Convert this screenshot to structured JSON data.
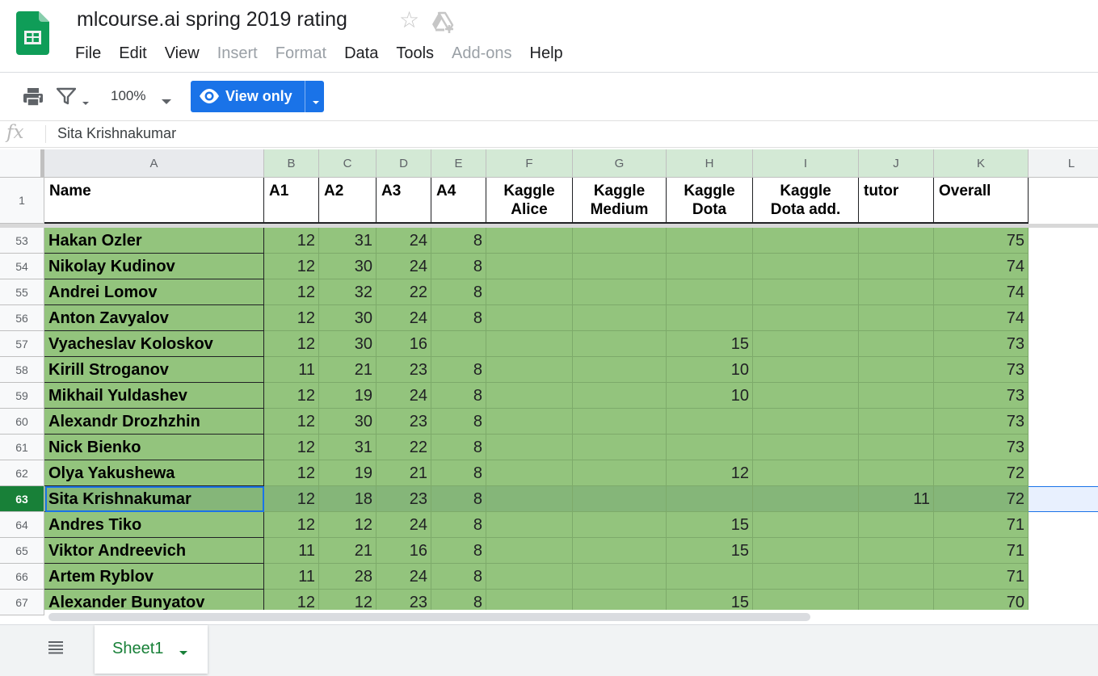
{
  "app": {
    "doc_title": "mlcourse.ai spring 2019 rating",
    "icons": {
      "logo": "sheets-logo-icon",
      "star": "star-icon",
      "drive": "add-to-drive-icon"
    }
  },
  "menu": [
    "File",
    "Edit",
    "View",
    "Insert",
    "Format",
    "Data",
    "Tools",
    "Add-ons",
    "Help"
  ],
  "menu_disabled": [
    "Insert",
    "Format",
    "Add-ons"
  ],
  "toolbar": {
    "zoom": "100%",
    "view_only_label": "View only",
    "icons": {
      "print": "print-icon",
      "filter": "filter-icon",
      "eye": "eye-icon"
    }
  },
  "formula_bar": {
    "fx_label": "fx",
    "content": "Sita Krishnakumar"
  },
  "columns": [
    "A",
    "B",
    "C",
    "D",
    "E",
    "F",
    "G",
    "H",
    "I",
    "J",
    "K",
    "L"
  ],
  "header_row": {
    "row_number": "1",
    "cells": [
      [
        "Name"
      ],
      [
        "A1"
      ],
      [
        "A2"
      ],
      [
        "A3"
      ],
      [
        "A4"
      ],
      [
        "Kaggle",
        "Alice"
      ],
      [
        "Kaggle",
        "Medium"
      ],
      [
        "Kaggle",
        "Dota"
      ],
      [
        "Kaggle",
        "Dota add."
      ],
      [
        "tutor"
      ],
      [
        "Overall"
      ]
    ]
  },
  "rows": [
    {
      "n": "53",
      "cells": [
        "Hakan Ozler",
        "12",
        "31",
        "24",
        "8",
        "",
        "",
        "",
        "",
        "",
        "75"
      ]
    },
    {
      "n": "54",
      "cells": [
        "Nikolay Kudinov",
        "12",
        "30",
        "24",
        "8",
        "",
        "",
        "",
        "",
        "",
        "74"
      ]
    },
    {
      "n": "55",
      "cells": [
        "Andrei Lomov",
        "12",
        "32",
        "22",
        "8",
        "",
        "",
        "",
        "",
        "",
        "74"
      ]
    },
    {
      "n": "56",
      "cells": [
        "Anton Zavyalov",
        "12",
        "30",
        "24",
        "8",
        "",
        "",
        "",
        "",
        "",
        "74"
      ]
    },
    {
      "n": "57",
      "cells": [
        "Vyacheslav Koloskov",
        "12",
        "30",
        "16",
        "",
        "",
        "",
        "15",
        "",
        "",
        "73"
      ]
    },
    {
      "n": "58",
      "cells": [
        "Kirill Stroganov",
        "11",
        "21",
        "23",
        "8",
        "",
        "",
        "10",
        "",
        "",
        "73"
      ]
    },
    {
      "n": "59",
      "cells": [
        "Mikhail Yuldashev",
        "12",
        "19",
        "24",
        "8",
        "",
        "",
        "10",
        "",
        "",
        "73"
      ]
    },
    {
      "n": "60",
      "cells": [
        "Alexandr Drozhzhin",
        "12",
        "30",
        "23",
        "8",
        "",
        "",
        "",
        "",
        "",
        "73"
      ]
    },
    {
      "n": "61",
      "cells": [
        "Nick Bienko",
        "12",
        "31",
        "22",
        "8",
        "",
        "",
        "",
        "",
        "",
        "73"
      ]
    },
    {
      "n": "62",
      "cells": [
        "Olya Yakushewa",
        "12",
        "19",
        "21",
        "8",
        "",
        "",
        "12",
        "",
        "",
        "72"
      ]
    },
    {
      "n": "63",
      "cells": [
        "Sita Krishnakumar",
        "12",
        "18",
        "23",
        "8",
        "",
        "",
        "",
        "",
        "11",
        "72"
      ],
      "selected": true
    },
    {
      "n": "64",
      "cells": [
        "Andres Tiko",
        "12",
        "12",
        "24",
        "8",
        "",
        "",
        "15",
        "",
        "",
        "71"
      ]
    },
    {
      "n": "65",
      "cells": [
        "Viktor Andreevich",
        "11",
        "21",
        "16",
        "8",
        "",
        "",
        "15",
        "",
        "",
        "71"
      ]
    },
    {
      "n": "66",
      "cells": [
        "Artem Ryblov",
        "11",
        "28",
        "24",
        "8",
        "",
        "",
        "",
        "",
        "",
        "71"
      ]
    },
    {
      "n": "67",
      "cells": [
        "Alexander Bunyatov",
        "12",
        "12",
        "23",
        "8",
        "",
        "",
        "15",
        "",
        "",
        "70"
      ]
    }
  ],
  "colors": {
    "cell_fill": "#93c47d",
    "selected_cell_fill": "#85b679",
    "accent": "#1a73e8",
    "sheets_green": "#188038",
    "column_header_highlight": "#d3e9d5"
  },
  "sheet_tabs": {
    "active": "Sheet1",
    "all_sheets_icon": "all-sheets-menu-icon"
  }
}
